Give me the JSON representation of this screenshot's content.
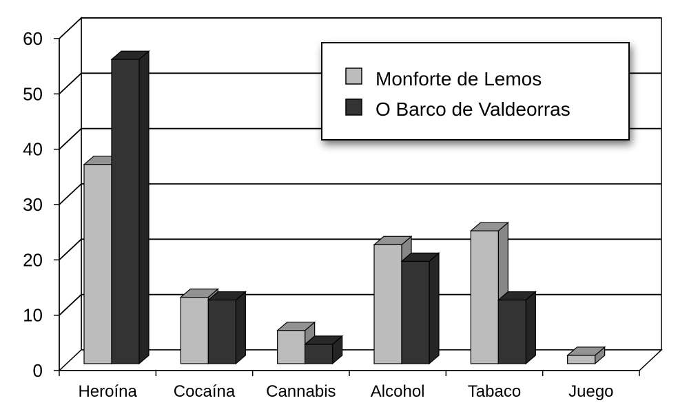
{
  "chart_data": {
    "type": "bar",
    "three_d": true,
    "categories": [
      "Heroína",
      "Cocaína",
      "Cannabis",
      "Alcohol",
      "Tabaco",
      "Juego"
    ],
    "series": [
      {
        "name": "Monforte de Lemos",
        "values": [
          36,
          12,
          6,
          21.5,
          24,
          1.5
        ],
        "color": "#bcbcbc"
      },
      {
        "name": "O Barco de Valdeorras",
        "values": [
          55,
          11.5,
          3.5,
          18.5,
          11.5,
          0
        ],
        "color": "#333333"
      }
    ],
    "yticks": [
      0,
      10,
      20,
      30,
      40,
      50,
      60
    ],
    "ylim": [
      0,
      60
    ],
    "grid": true,
    "legend_position": "top-right",
    "title": "",
    "xlabel": "",
    "ylabel": ""
  }
}
